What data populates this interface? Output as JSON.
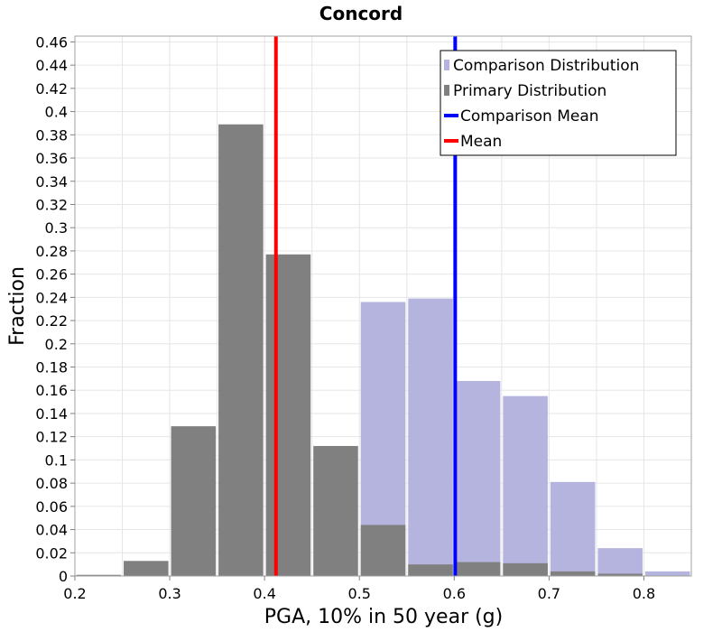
{
  "chart_data": {
    "type": "bar",
    "title": "Concord",
    "xlabel": "PGA, 10% in 50 year (g)",
    "ylabel": "Fraction",
    "xlim": [
      0.2,
      0.85
    ],
    "ylim": [
      0,
      0.465
    ],
    "bin_width": 0.05,
    "grid": true,
    "legend_position": "top-right",
    "x_ticks": [
      0.2,
      0.3,
      0.4,
      0.5,
      0.6,
      0.7,
      0.8
    ],
    "y_ticks": [
      0,
      0.02,
      0.04,
      0.06,
      0.08,
      0.1,
      0.12,
      0.14,
      0.16,
      0.18,
      0.2,
      0.22,
      0.24,
      0.26,
      0.28,
      0.3,
      0.32,
      0.34,
      0.36,
      0.38,
      0.4,
      0.42,
      0.44,
      0.46
    ],
    "series": [
      {
        "name": "Comparison Distribution",
        "kind": "histogram",
        "color": "#b4b4de",
        "bins": [
          0.5,
          0.55,
          0.6,
          0.65,
          0.7,
          0.75,
          0.8
        ],
        "values": [
          0.236,
          0.239,
          0.168,
          0.155,
          0.081,
          0.024,
          0.004
        ]
      },
      {
        "name": "Primary Distribution",
        "kind": "histogram",
        "color": "#808080",
        "bins": [
          0.2,
          0.25,
          0.3,
          0.35,
          0.4,
          0.45,
          0.5,
          0.55,
          0.6,
          0.65,
          0.7,
          0.75
        ],
        "values": [
          0.001,
          0.013,
          0.129,
          0.389,
          0.277,
          0.112,
          0.044,
          0.01,
          0.012,
          0.011,
          0.004,
          0.002
        ]
      },
      {
        "name": "Comparison Mean",
        "kind": "vline",
        "color": "#0000ff",
        "x": 0.601
      },
      {
        "name": "Mean",
        "kind": "vline",
        "color": "#ff0000",
        "x": 0.412
      }
    ]
  }
}
